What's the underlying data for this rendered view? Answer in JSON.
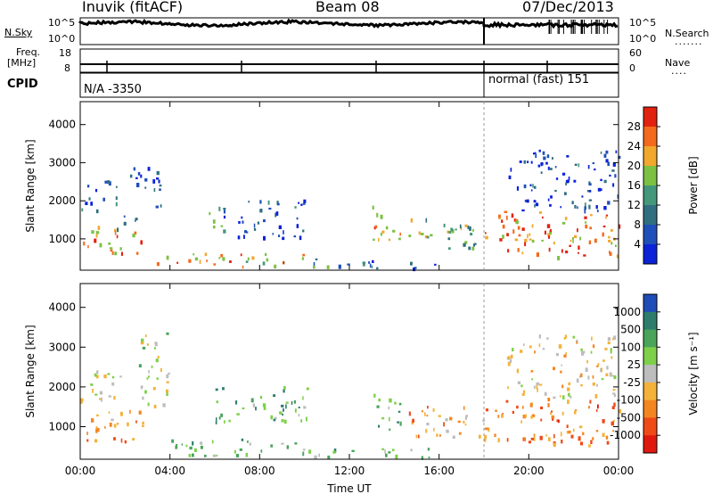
{
  "header": {
    "station": "Inuvik (fitACF)",
    "beam": "Beam 08",
    "date": "07/Dec/2013"
  },
  "top_panel": {
    "left_label": "N.Sky",
    "right_label": "N.Search",
    "left_ticks": [
      "10^5",
      "10^0"
    ],
    "right_ticks": [
      "10^5",
      "10^0"
    ]
  },
  "freq_panel": {
    "left_label_1": "Freq.",
    "left_label_2": "[MHz]",
    "left_ticks": [
      "18",
      "8"
    ],
    "right_label": "Nave",
    "right_ticks": [
      "60",
      "0"
    ]
  },
  "cpid": {
    "label": "CPID",
    "mode_1": "N/A -3350",
    "mode_2": "normal (fast) 151"
  },
  "chart_data": [
    {
      "type": "heatmap",
      "name_printed": "",
      "xlabel": "Time UT",
      "ylabel": "Slant Range [km]",
      "x_ticks": [
        "00:00",
        "04:00",
        "08:00",
        "12:00",
        "16:00",
        "20:00",
        "00:00"
      ],
      "xlim_hours": [
        0,
        24
      ],
      "y_ticks": [
        1000,
        2000,
        3000,
        4000
      ],
      "ylim": [
        180,
        4600
      ],
      "colorbar": {
        "label": "Power [dB]",
        "ticks": [
          4,
          8,
          12,
          16,
          20,
          24,
          28
        ],
        "range": [
          0,
          32
        ],
        "colors": [
          "#0b22d9",
          "#1f4fb8",
          "#2f6f80",
          "#43977b",
          "#7cc142",
          "#f2a72d",
          "#f46a1c",
          "#e2220f"
        ]
      },
      "scatter_regions": [
        {
          "t0": 0.0,
          "t1": 2.8,
          "r0": 600,
          "r1": 1300,
          "level": 0.75
        },
        {
          "t0": 0.0,
          "t1": 1.6,
          "r0": 1700,
          "r1": 2500,
          "level": 0.25
        },
        {
          "t0": 1.6,
          "t1": 2.7,
          "r0": 1200,
          "r1": 1600,
          "level": 0.15
        },
        {
          "t0": 2.2,
          "t1": 3.6,
          "r0": 1800,
          "r1": 3000,
          "level": 0.1
        },
        {
          "t0": 3.0,
          "t1": 10.0,
          "r0": 250,
          "r1": 600,
          "level": 0.7
        },
        {
          "t0": 5.6,
          "t1": 6.3,
          "r0": 1300,
          "r1": 1900,
          "level": 0.5
        },
        {
          "t0": 6.3,
          "t1": 10.0,
          "r0": 1000,
          "r1": 2000,
          "level": 0.2
        },
        {
          "t0": 10.0,
          "t1": 16.0,
          "r0": 200,
          "r1": 450,
          "level": 0.3
        },
        {
          "t0": 13.0,
          "t1": 14.3,
          "r0": 900,
          "r1": 1900,
          "level": 0.65
        },
        {
          "t0": 14.6,
          "t1": 18.0,
          "r0": 700,
          "r1": 1500,
          "level": 0.5
        },
        {
          "t0": 18.0,
          "t1": 24.0,
          "r0": 500,
          "r1": 1700,
          "level": 0.8
        },
        {
          "t0": 19.0,
          "t1": 24.0,
          "r0": 1700,
          "r1": 3300,
          "level": 0.15
        }
      ]
    },
    {
      "type": "heatmap",
      "name_printed": "",
      "xlabel": "Time UT",
      "ylabel": "Slant Range [km]",
      "x_ticks": [
        "00:00",
        "04:00",
        "08:00",
        "12:00",
        "16:00",
        "20:00",
        "00:00"
      ],
      "xlim_hours": [
        0,
        24
      ],
      "y_ticks": [
        1000,
        2000,
        3000,
        4000
      ],
      "ylim": [
        180,
        4600
      ],
      "colorbar": {
        "label": "Velocity [m s⁻¹]",
        "ticks": [
          1000,
          500,
          100,
          25,
          -25,
          -100,
          -500,
          -1000
        ],
        "colors": [
          "#1e4db7",
          "#2e7d6c",
          "#4aa45a",
          "#7ed04a",
          "#bdbdbd",
          "#f4b23a",
          "#f48622",
          "#ef4a18",
          "#e0190f"
        ]
      },
      "scatter_regions": [
        {
          "t0": 0.0,
          "t1": 2.8,
          "r0": 600,
          "r1": 1400,
          "level": 0.75
        },
        {
          "t0": 0.0,
          "t1": 2.0,
          "r0": 1600,
          "r1": 2400,
          "level": 0.45
        },
        {
          "t0": 2.5,
          "t1": 4.0,
          "r0": 1500,
          "r1": 3400,
          "level": 0.35
        },
        {
          "t0": 4.0,
          "t1": 10.0,
          "r0": 250,
          "r1": 700,
          "level": 0.2
        },
        {
          "t0": 6.0,
          "t1": 10.3,
          "r0": 1100,
          "r1": 2000,
          "level": 0.15
        },
        {
          "t0": 10.0,
          "t1": 16.0,
          "r0": 200,
          "r1": 450,
          "level": 0.25
        },
        {
          "t0": 13.0,
          "t1": 14.3,
          "r0": 900,
          "r1": 1900,
          "level": 0.15
        },
        {
          "t0": 14.6,
          "t1": 18.0,
          "r0": 700,
          "r1": 1500,
          "level": 0.65
        },
        {
          "t0": 18.0,
          "t1": 24.0,
          "r0": 500,
          "r1": 1700,
          "level": 0.8
        },
        {
          "t0": 19.0,
          "t1": 24.0,
          "r0": 1700,
          "r1": 3300,
          "level": 0.5
        }
      ]
    }
  ]
}
